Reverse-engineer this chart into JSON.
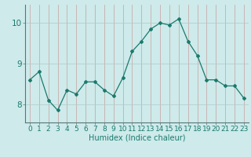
{
  "x": [
    0,
    1,
    2,
    3,
    4,
    5,
    6,
    7,
    8,
    9,
    10,
    11,
    12,
    13,
    14,
    15,
    16,
    17,
    18,
    19,
    20,
    21,
    22,
    23
  ],
  "y": [
    8.6,
    8.8,
    8.1,
    7.85,
    8.35,
    8.25,
    8.55,
    8.55,
    8.35,
    8.2,
    8.65,
    9.3,
    9.55,
    9.85,
    10.0,
    9.95,
    10.1,
    9.55,
    9.2,
    8.6,
    8.6,
    8.45,
    8.45,
    8.15
  ],
  "line_color": "#1a7a6e",
  "marker": "D",
  "marker_size": 2,
  "bg_color": "#ceeaea",
  "grid_color_x": "#c8a0a0",
  "grid_color_y": "#b0c8c8",
  "axis_color": "#557777",
  "xlabel": "Humidex (Indice chaleur)",
  "xlabel_fontsize": 7,
  "yticks": [
    8,
    9,
    10
  ],
  "ylim": [
    7.55,
    10.45
  ],
  "xlim": [
    -0.5,
    23.5
  ],
  "tick_fontsize": 6.5
}
